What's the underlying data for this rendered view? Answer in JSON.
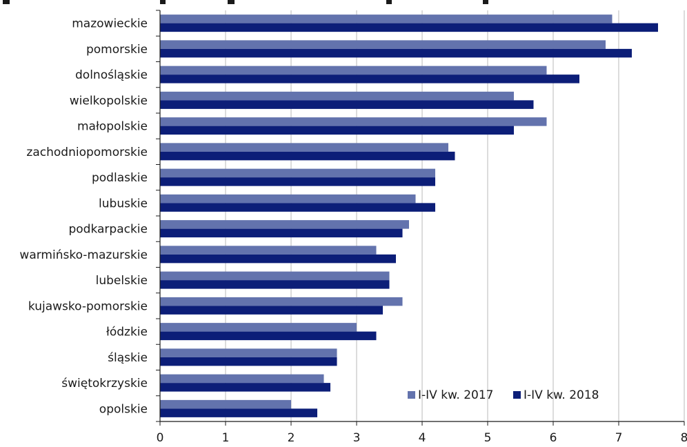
{
  "chart_data": {
    "type": "bar",
    "orientation": "horizontal",
    "categories": [
      "mazowieckie",
      "pomorskie",
      "dolnośląskie",
      "wielkopolskie",
      "małopolskie",
      "zachodniopomorskie",
      "podlaskie",
      "lubuskie",
      "podkarpackie",
      "warmińsko-mazurskie",
      "lubelskie",
      "kujawsko-pomorskie",
      "łódzkie",
      "śląskie",
      "świętokrzyskie",
      "opolskie"
    ],
    "series": [
      {
        "name": "I-IV kw. 2017",
        "color": "#6373ad",
        "values": [
          6.9,
          6.8,
          5.9,
          5.4,
          5.9,
          4.4,
          4.2,
          3.9,
          3.8,
          3.3,
          3.5,
          3.7,
          3.0,
          2.7,
          2.5,
          2.0
        ]
      },
      {
        "name": "I-IV kw. 2018",
        "color": "#0c1e78",
        "values": [
          7.6,
          7.2,
          6.4,
          5.7,
          5.4,
          4.5,
          4.2,
          4.2,
          3.7,
          3.6,
          3.5,
          3.4,
          3.3,
          2.7,
          2.6,
          2.4
        ]
      }
    ],
    "xlim": [
      0,
      8
    ],
    "x_ticks": [
      "0",
      "1",
      "2",
      "3",
      "4",
      "5",
      "6",
      "7",
      "8"
    ],
    "grid": "vertical",
    "legend_position": "bottom-right",
    "title": "",
    "xlabel": "",
    "ylabel": ""
  }
}
